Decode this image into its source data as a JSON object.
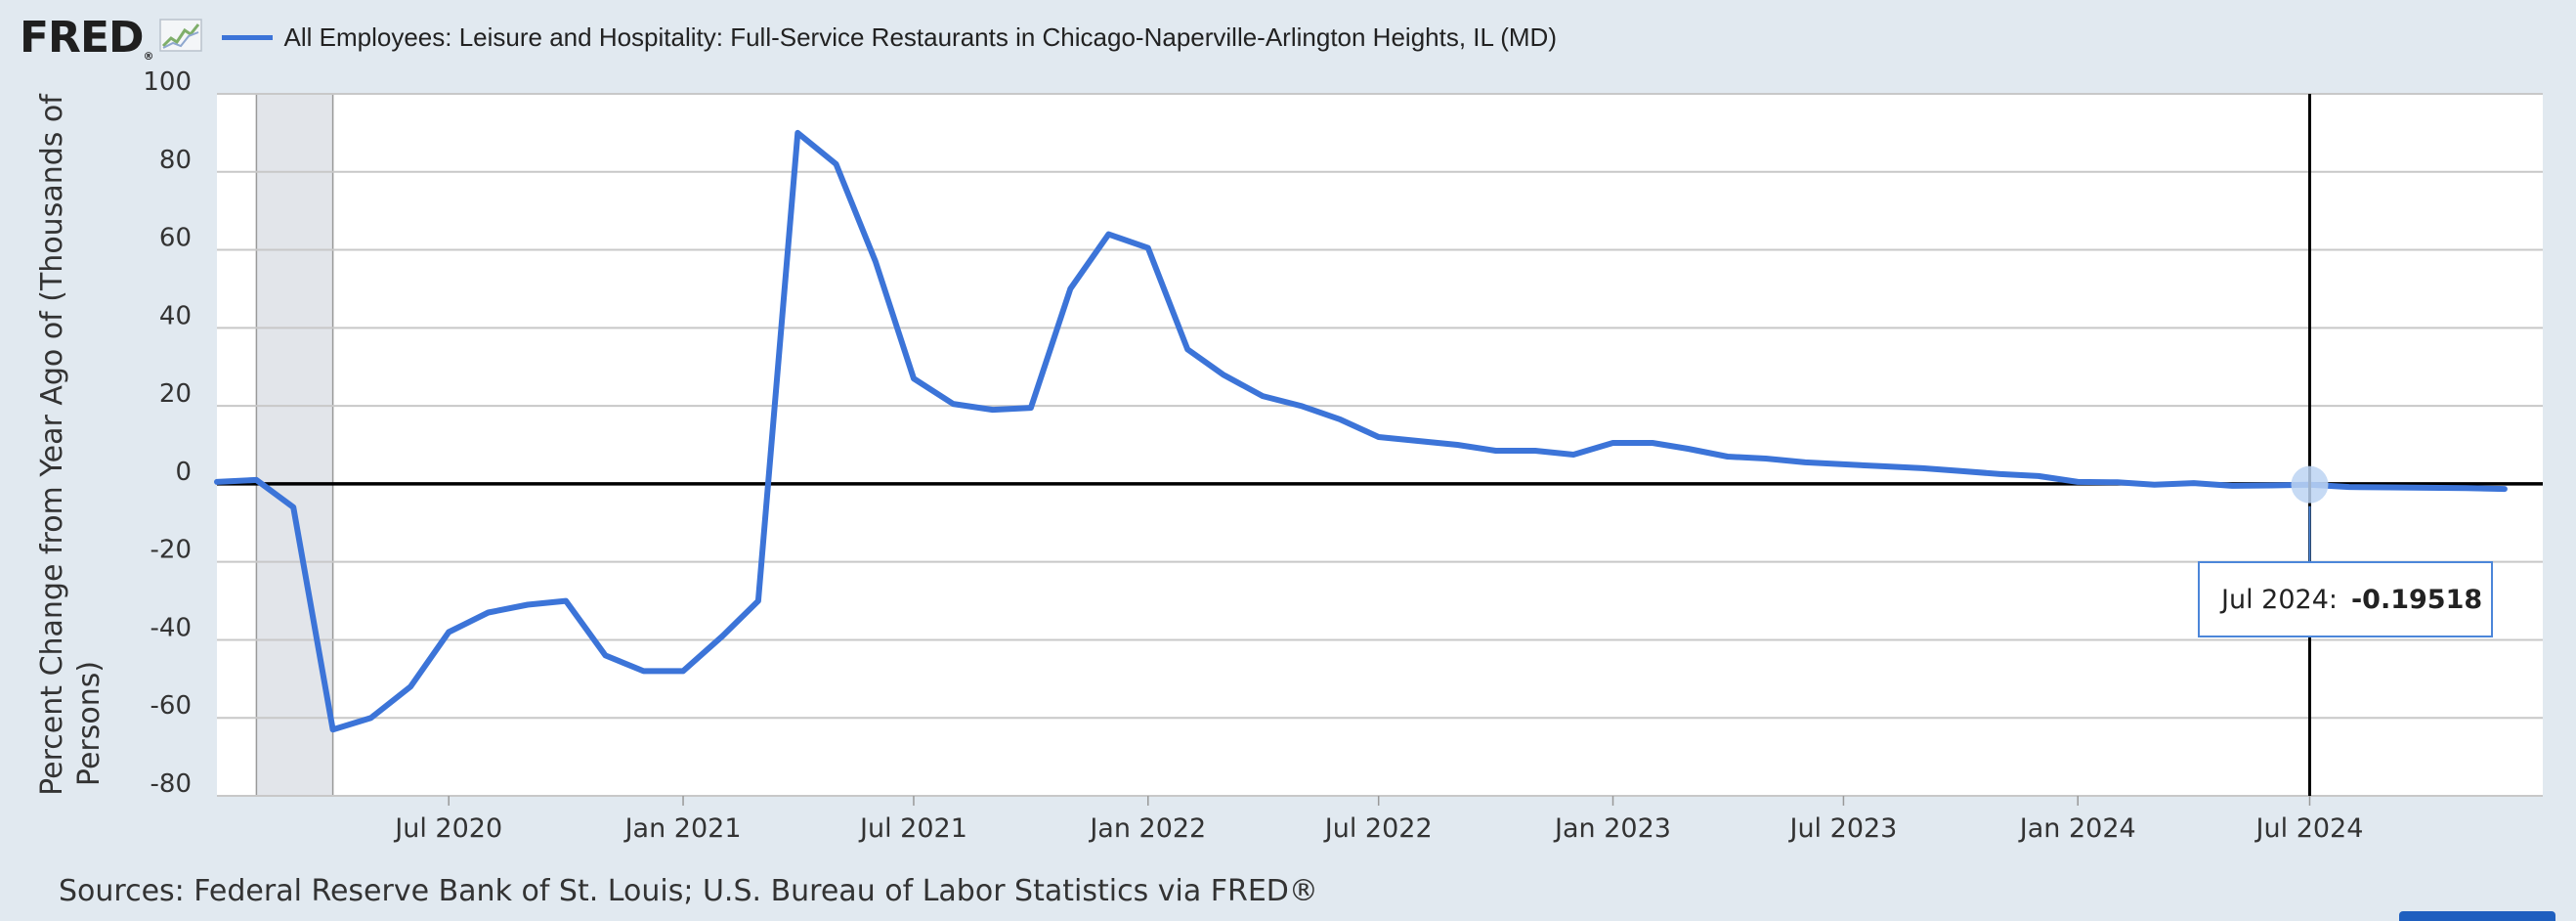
{
  "header": {
    "logo_text": "FRED",
    "logo_reg": "®",
    "logo_icon": "fred-graph-icon",
    "series_color": "#3c74d8"
  },
  "tooltip": {
    "date": "Jul 2024:",
    "value": "-0.19518"
  },
  "footer": {
    "sources": "Sources: Federal Reserve Bank of St. Louis; U.S. Bureau of Labor Statistics via FRED®"
  },
  "chart_data": {
    "type": "line",
    "title": "All Employees: Leisure and Hospitality: Full-Service Restaurants in Chicago-Naperville-Arlington Heights, IL (MD)",
    "xlabel": "",
    "ylabel": "Percent Change from Year Ago of (Thousands of Persons)",
    "ylabel_lines": [
      "Percent Change from Year Ago of (Thousands of",
      "Persons)"
    ],
    "ylim": [
      -80,
      100
    ],
    "yticks": [
      100,
      80,
      60,
      40,
      20,
      0,
      -20,
      -40,
      -60,
      -80
    ],
    "ytick_labels": [
      "100",
      "80",
      "60",
      "40",
      "20",
      "0",
      "-20",
      "-40",
      "-60",
      "-80"
    ],
    "xlim": [
      "2020-01-01",
      "2024-12-31"
    ],
    "xticks": [
      {
        "date": "2020-07-01",
        "label": "Jul 2020"
      },
      {
        "date": "2021-01-01",
        "label": "Jan 2021"
      },
      {
        "date": "2021-07-01",
        "label": "Jul 2021"
      },
      {
        "date": "2022-01-01",
        "label": "Jan 2022"
      },
      {
        "date": "2022-07-01",
        "label": "Jul 2022"
      },
      {
        "date": "2023-01-01",
        "label": "Jan 2023"
      },
      {
        "date": "2023-07-01",
        "label": "Jul 2023"
      },
      {
        "date": "2024-01-01",
        "label": "Jan 2024"
      },
      {
        "date": "2024-07-01",
        "label": "Jul 2024"
      }
    ],
    "recession_shading": {
      "start": "2020-02-01",
      "end": "2020-04-01"
    },
    "highlight": {
      "date": "2024-07-01",
      "value": -0.19518
    },
    "grid": true,
    "zero_line": true,
    "series": [
      {
        "name": "All Employees: Leisure and Hospitality: Full-Service Restaurants in Chicago-Naperville-Arlington Heights, IL (MD)",
        "color": "#3c74d8",
        "x": [
          "2020-01-01",
          "2020-02-01",
          "2020-03-01",
          "2020-04-01",
          "2020-05-01",
          "2020-06-01",
          "2020-07-01",
          "2020-08-01",
          "2020-09-01",
          "2020-10-01",
          "2020-11-01",
          "2020-12-01",
          "2021-01-01",
          "2021-02-01",
          "2021-03-01",
          "2021-04-01",
          "2021-05-01",
          "2021-06-01",
          "2021-07-01",
          "2021-08-01",
          "2021-09-01",
          "2021-10-01",
          "2021-11-01",
          "2021-12-01",
          "2022-01-01",
          "2022-02-01",
          "2022-03-01",
          "2022-04-01",
          "2022-05-01",
          "2022-06-01",
          "2022-07-01",
          "2022-08-01",
          "2022-09-01",
          "2022-10-01",
          "2022-11-01",
          "2022-12-01",
          "2023-01-01",
          "2023-02-01",
          "2023-03-01",
          "2023-04-01",
          "2023-05-01",
          "2023-06-01",
          "2023-07-01",
          "2023-08-01",
          "2023-09-01",
          "2023-10-01",
          "2023-11-01",
          "2023-12-01",
          "2024-01-01",
          "2024-02-01",
          "2024-03-01",
          "2024-04-01",
          "2024-05-01",
          "2024-06-01",
          "2024-07-01",
          "2024-08-01",
          "2024-09-01",
          "2024-10-01",
          "2024-11-01",
          "2024-12-01"
        ],
        "values": [
          0.5,
          1.0,
          -6,
          -63,
          -60,
          -52,
          -38,
          -33,
          -31,
          -30,
          -44,
          -48,
          -48,
          -39,
          -30,
          90,
          82,
          57,
          27,
          20.5,
          19,
          19.5,
          50,
          64,
          60.5,
          34.5,
          28,
          22.5,
          20,
          16.5,
          12,
          11,
          10,
          8.5,
          8.5,
          7.5,
          10.5,
          10.5,
          9,
          7,
          6.5,
          5.5,
          5,
          4.5,
          4,
          3.3,
          2.5,
          2,
          0.5,
          0.4,
          -0.2,
          0.2,
          -0.5,
          -0.4,
          -0.19518,
          -0.8,
          -0.9,
          -1.0,
          -1.1,
          -1.3
        ]
      }
    ]
  }
}
